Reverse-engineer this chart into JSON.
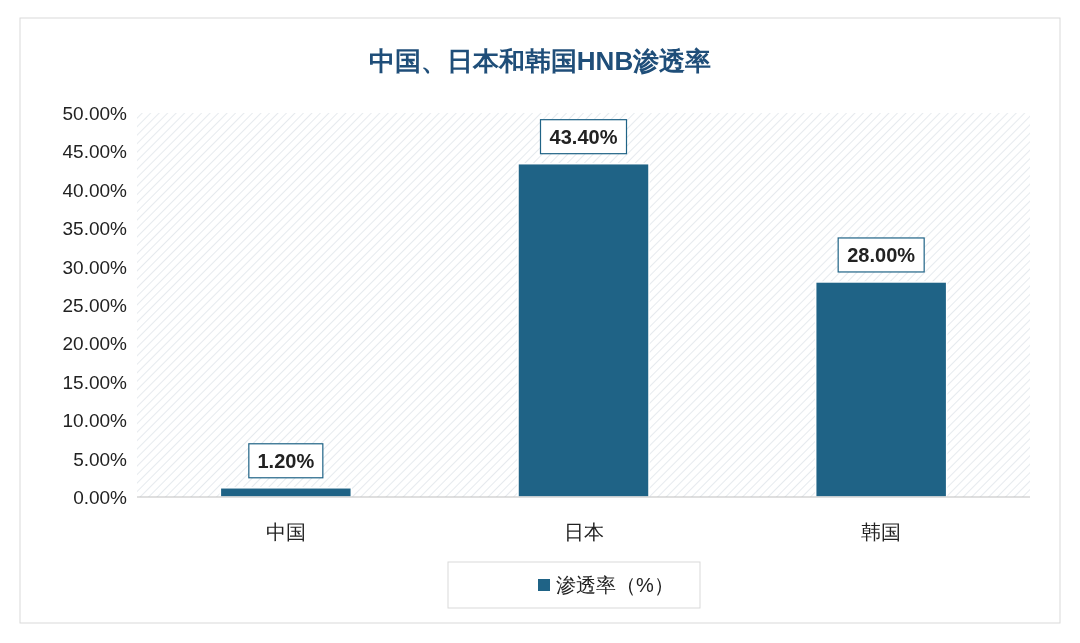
{
  "chart_data": {
    "type": "bar",
    "title": "中国、日本和韩国HNB渗透率",
    "categories": [
      "中国",
      "日本",
      "韩国"
    ],
    "series": [
      {
        "name": "渗透率（%）",
        "color": "#1f6386",
        "values": [
          1.2,
          43.4,
          28.0
        ],
        "value_labels": [
          "1.20%",
          "43.40%",
          "28.00%"
        ]
      }
    ],
    "ylim": [
      0,
      50
    ],
    "yticks": [
      {
        "value": 0,
        "label": "0.00%"
      },
      {
        "value": 5,
        "label": "5.00%"
      },
      {
        "value": 10,
        "label": "10.00%"
      },
      {
        "value": 15,
        "label": "15.00%"
      },
      {
        "value": 20,
        "label": "20.00%"
      },
      {
        "value": 25,
        "label": "25.00%"
      },
      {
        "value": 30,
        "label": "30.00%"
      },
      {
        "value": 35,
        "label": "35.00%"
      },
      {
        "value": 40,
        "label": "40.00%"
      },
      {
        "value": 45,
        "label": "45.00%"
      },
      {
        "value": 50,
        "label": "50.00%"
      }
    ],
    "legend": "bottom"
  }
}
